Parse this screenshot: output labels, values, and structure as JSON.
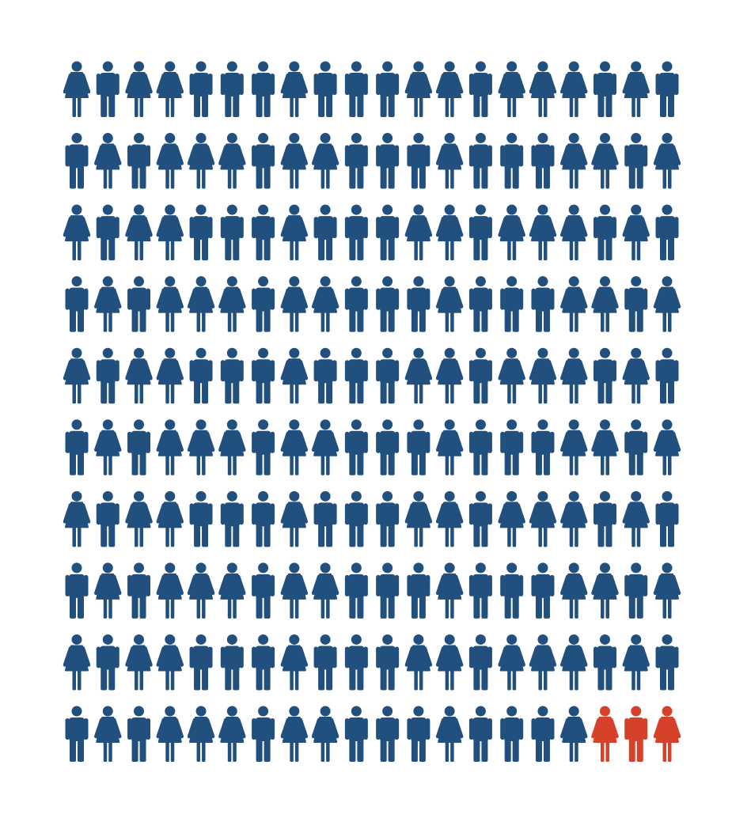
{
  "chart_data": {
    "type": "pictogram",
    "rows": [
      [
        "f",
        "m",
        "f",
        "f",
        "m",
        "m",
        "m",
        "f",
        "m",
        "m",
        "m",
        "f",
        "f",
        "m",
        "f",
        "f",
        "f",
        "m",
        "f",
        "m"
      ],
      [
        "m",
        "f",
        "m",
        "f",
        "f",
        "f",
        "m",
        "f",
        "f",
        "m",
        "m",
        "m",
        "f",
        "m",
        "m",
        "m",
        "f",
        "f",
        "m",
        "f"
      ],
      [
        "f",
        "m",
        "f",
        "f",
        "m",
        "m",
        "m",
        "f",
        "m",
        "m",
        "m",
        "f",
        "f",
        "m",
        "f",
        "f",
        "f",
        "m",
        "f",
        "m"
      ],
      [
        "m",
        "f",
        "m",
        "f",
        "f",
        "f",
        "m",
        "f",
        "f",
        "m",
        "m",
        "m",
        "f",
        "m",
        "m",
        "m",
        "f",
        "f",
        "m",
        "f"
      ],
      [
        "f",
        "m",
        "f",
        "f",
        "m",
        "m",
        "m",
        "f",
        "m",
        "m",
        "m",
        "f",
        "f",
        "m",
        "f",
        "f",
        "f",
        "m",
        "f",
        "m"
      ],
      [
        "m",
        "f",
        "m",
        "f",
        "f",
        "f",
        "m",
        "f",
        "f",
        "m",
        "m",
        "m",
        "f",
        "m",
        "m",
        "m",
        "f",
        "f",
        "m",
        "f"
      ],
      [
        "f",
        "m",
        "f",
        "f",
        "m",
        "m",
        "m",
        "f",
        "m",
        "m",
        "m",
        "f",
        "f",
        "m",
        "f",
        "f",
        "f",
        "m",
        "f",
        "m"
      ],
      [
        "m",
        "f",
        "m",
        "f",
        "f",
        "f",
        "m",
        "f",
        "f",
        "m",
        "m",
        "m",
        "f",
        "m",
        "m",
        "m",
        "f",
        "f",
        "m",
        "f"
      ],
      [
        "f",
        "m",
        "f",
        "f",
        "m",
        "m",
        "m",
        "f",
        "m",
        "m",
        "m",
        "f",
        "f",
        "m",
        "f",
        "f",
        "f",
        "m",
        "f",
        "m"
      ],
      [
        "m",
        "f",
        "m",
        "f",
        "f",
        "f",
        "m",
        "f",
        "f",
        "m",
        "m",
        "m",
        "f",
        "m",
        "m",
        "m",
        "f",
        "f",
        "m",
        "f"
      ]
    ],
    "color": "#22507e",
    "highlight_color": "#d6412a",
    "highlight_count": 3
  }
}
